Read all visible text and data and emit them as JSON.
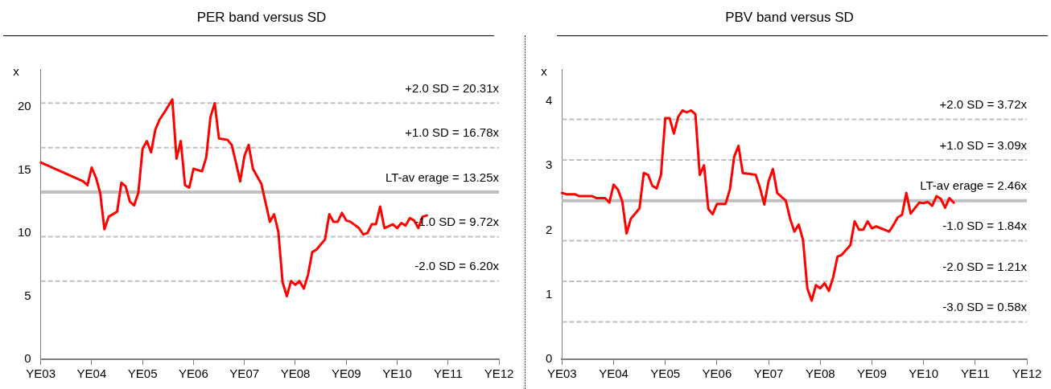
{
  "chart_data": [
    {
      "type": "line",
      "title": "PER band versus SD",
      "ylabel": "x",
      "marker": "none",
      "line_style": "solid",
      "grid": false,
      "categories": [
        "YE03",
        null,
        null,
        null,
        null,
        null,
        null,
        null,
        null,
        null,
        null,
        null,
        "YE04",
        null,
        null,
        null,
        null,
        null,
        null,
        null,
        null,
        null,
        null,
        null,
        "YE05",
        null,
        null,
        null,
        null,
        null,
        null,
        null,
        null,
        null,
        null,
        null,
        "YE06",
        null,
        null,
        null,
        null,
        null,
        null,
        null,
        null,
        null,
        null,
        null,
        "YE07",
        null,
        null,
        null,
        null,
        null,
        null,
        null,
        null,
        null,
        null,
        null,
        "YE08",
        null,
        null,
        null,
        null,
        null,
        null,
        null,
        null,
        null,
        null,
        null,
        "YE09",
        null,
        null,
        null,
        null,
        null,
        null,
        null,
        null,
        null,
        null,
        null,
        "YE10",
        null,
        null,
        null,
        null,
        null,
        null,
        null,
        null,
        null,
        null,
        null,
        "YE11",
        null,
        null,
        null,
        null,
        null,
        null,
        null,
        null,
        null,
        null,
        null,
        "YE12"
      ],
      "series": [
        {
          "color": "#ff0000",
          "values": [
            15.6,
            null,
            null,
            null,
            null,
            null,
            null,
            null,
            null,
            null,
            14.1,
            13.8,
            15.2,
            14.4,
            13.2,
            10.3,
            11.3,
            null,
            11.7,
            14.0,
            13.7,
            12.5,
            12.2,
            13.2,
            16.7,
            17.3,
            16.4,
            18.2,
            19.0,
            19.5,
            null,
            20.6,
            15.9,
            17.3,
            13.8,
            13.6,
            15.1,
            null,
            14.9,
            16.0,
            19.2,
            20.3,
            17.5,
            null,
            17.4,
            17.0,
            15.6,
            14.1,
            16.1,
            17.0,
            15.1,
            null,
            13.9,
            12.4,
            10.9,
            11.5,
            10.1,
            6.1,
            5.0,
            6.2,
            5.9,
            6.2,
            5.6,
            6.7,
            8.5,
            8.7,
            null,
            9.5,
            11.5,
            10.9,
            10.9,
            11.6,
            11.0,
            10.9,
            null,
            10.4,
            9.9,
            10.0,
            10.7,
            10.7,
            12.1,
            10.4,
            null,
            10.7,
            10.4,
            10.8,
            10.6,
            11.2,
            11.0,
            10.4,
            11.3,
            11.4,
            null,
            null,
            null,
            null,
            null,
            null,
            null,
            null,
            null,
            null,
            null,
            null,
            null,
            null,
            null,
            null,
            null
          ]
        }
      ],
      "ylim": [
        0,
        23
      ],
      "yticks": [
        0,
        5,
        10,
        15,
        20
      ],
      "ref_lines": [
        {
          "axis": "y",
          "value": 20.31,
          "label": "+2.0 SD = 20.31x",
          "color": "#c0c0c0",
          "line_style": "dashed"
        },
        {
          "axis": "y",
          "value": 16.78,
          "label": "+1.0 SD = 16.78x",
          "color": "#c0c0c0",
          "line_style": "dashed"
        },
        {
          "axis": "y",
          "value": 13.25,
          "label": "LT-av erage = 13.25x",
          "color": "#c0c0c0",
          "line_style": "solid"
        },
        {
          "axis": "y",
          "value": 9.72,
          "label": "-1.0 SD = 9.72x",
          "color": "#c0c0c0",
          "line_style": "dashed"
        },
        {
          "axis": "y",
          "value": 6.2,
          "label": "-2.0 SD = 6.20x",
          "color": "#c0c0c0",
          "line_style": "dashed"
        }
      ]
    },
    {
      "type": "line",
      "title": "PBV band versus SD",
      "ylabel": "x",
      "marker": "none",
      "line_style": "solid",
      "grid": false,
      "categories": [
        "YE03",
        null,
        null,
        null,
        null,
        null,
        null,
        null,
        null,
        null,
        null,
        null,
        "YE04",
        null,
        null,
        null,
        null,
        null,
        null,
        null,
        null,
        null,
        null,
        null,
        "YE05",
        null,
        null,
        null,
        null,
        null,
        null,
        null,
        null,
        null,
        null,
        null,
        "YE06",
        null,
        null,
        null,
        null,
        null,
        null,
        null,
        null,
        null,
        null,
        null,
        "YE07",
        null,
        null,
        null,
        null,
        null,
        null,
        null,
        null,
        null,
        null,
        null,
        "YE08",
        null,
        null,
        null,
        null,
        null,
        null,
        null,
        null,
        null,
        null,
        null,
        "YE09",
        null,
        null,
        null,
        null,
        null,
        null,
        null,
        null,
        null,
        null,
        null,
        "YE10",
        null,
        null,
        null,
        null,
        null,
        null,
        null,
        null,
        null,
        null,
        null,
        "YE11",
        null,
        null,
        null,
        null,
        null,
        null,
        null,
        null,
        null,
        null,
        null,
        "YE12"
      ],
      "series": [
        {
          "color": "#ff0000",
          "values": [
            2.58,
            2.56,
            null,
            2.56,
            2.53,
            null,
            null,
            2.53,
            2.5,
            null,
            2.5,
            2.43,
            2.71,
            2.63,
            2.45,
            1.95,
            2.18,
            2.26,
            2.34,
            2.89,
            2.86,
            2.69,
            2.65,
            2.86,
            3.74,
            3.74,
            3.5,
            3.76,
            3.86,
            3.83,
            3.86,
            3.8,
            2.86,
            3.01,
            2.33,
            2.25,
            2.41,
            null,
            2.41,
            2.63,
            3.14,
            3.31,
            2.89,
            null,
            null,
            2.86,
            2.66,
            2.4,
            2.76,
            2.95,
            2.58,
            null,
            2.46,
            2.18,
            1.98,
            2.09,
            1.85,
            1.1,
            0.91,
            1.15,
            1.1,
            1.18,
            1.06,
            1.27,
            1.59,
            1.62,
            null,
            1.77,
            2.14,
            2.01,
            2.01,
            2.14,
            2.03,
            2.06,
            null,
            null,
            1.98,
            2.08,
            2.2,
            2.24,
            2.58,
            2.26,
            null,
            2.43,
            2.42,
            2.44,
            2.38,
            2.53,
            2.49,
            2.35,
            2.5,
            2.43,
            null,
            null,
            null,
            null,
            null,
            null,
            null,
            null,
            null,
            null,
            null,
            null,
            null,
            null,
            null,
            null,
            null
          ]
        }
      ],
      "ylim": [
        0,
        4.5
      ],
      "yticks": [
        0,
        1,
        2,
        3,
        4
      ],
      "ref_lines": [
        {
          "axis": "y",
          "value": 3.72,
          "label": "+2.0 SD = 3.72x",
          "color": "#c0c0c0",
          "line_style": "dashed"
        },
        {
          "axis": "y",
          "value": 3.09,
          "label": "+1.0 SD = 3.09x",
          "color": "#c0c0c0",
          "line_style": "dashed"
        },
        {
          "axis": "y",
          "value": 2.46,
          "label": "LT-av erage = 2.46x",
          "color": "#c0c0c0",
          "line_style": "solid"
        },
        {
          "axis": "y",
          "value": 1.84,
          "label": "-1.0 SD = 1.84x",
          "color": "#c0c0c0",
          "line_style": "dashed"
        },
        {
          "axis": "y",
          "value": 1.21,
          "label": "-2.0 SD = 1.21x",
          "color": "#c0c0c0",
          "line_style": "dashed"
        },
        {
          "axis": "y",
          "value": 0.58,
          "label": "-3.0 SD = 0.58x",
          "color": "#c0c0c0",
          "line_style": "dashed"
        }
      ]
    }
  ]
}
